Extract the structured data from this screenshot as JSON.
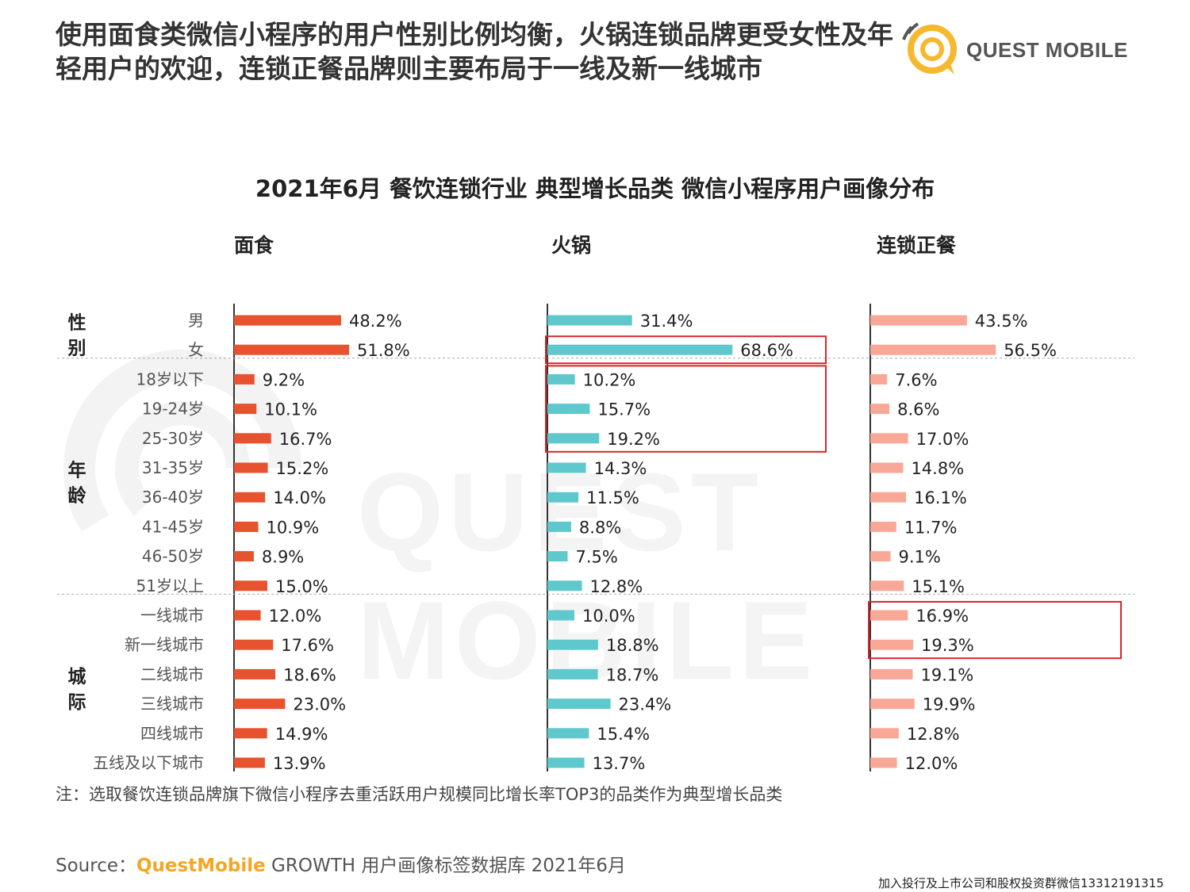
{
  "headline": "使用面食类微信小程序的用户性别比例均衡，火锅连锁品牌更受女性及年轻用户的欢迎，连锁正餐品牌则主要布局于一线及新一线城市",
  "logo": {
    "text": "QUEST MOBILE",
    "icon": "quest-mobile-logo-icon"
  },
  "watermark": "QUEST MOBILE",
  "note": "注：选取餐饮连锁品牌旗下微信小程序去重活跃用户规模同比增长率TOP3的品类作为典型增长品类",
  "source": {
    "prefix": "Source：",
    "brand": "QuestMobile",
    "rest": " GROWTH 用户画像标签数据库 2021年6月"
  },
  "footer": "加入投行及上市公司和股权投资群微信13312191315",
  "colors": {
    "noodle": "#e8532f",
    "hotpot": "#5fc8cc",
    "chain": "#f9a797",
    "highlight": "#d9262c",
    "brand": "#f5a623"
  },
  "chart_data": {
    "type": "bar",
    "title": "2021年6月 餐饮连锁行业 典型增长品类 微信小程序用户画像分布",
    "groups": [
      {
        "name": "性别",
        "categories": [
          "男",
          "女"
        ]
      },
      {
        "name": "年龄",
        "categories": [
          "18岁以下",
          "19-24岁",
          "25-30岁",
          "31-35岁",
          "36-40岁",
          "41-45岁",
          "46-50岁",
          "51岁以上"
        ]
      },
      {
        "name": "城际",
        "categories": [
          "一线城市",
          "新一线城市",
          "二线城市",
          "三线城市",
          "四线城市",
          "五线及以下城市"
        ]
      }
    ],
    "categories": [
      "男",
      "女",
      "18岁以下",
      "19-24岁",
      "25-30岁",
      "31-35岁",
      "36-40岁",
      "41-45岁",
      "46-50岁",
      "51岁以上",
      "一线城市",
      "新一线城市",
      "二线城市",
      "三线城市",
      "四线城市",
      "五线及以下城市"
    ],
    "series": [
      {
        "name": "面食",
        "values": [
          48.2,
          51.8,
          9.2,
          10.1,
          16.7,
          15.2,
          14.0,
          10.9,
          8.9,
          15.0,
          12.0,
          17.6,
          18.6,
          23.0,
          14.9,
          13.9
        ],
        "labels": [
          "48.2%",
          "51.8%",
          "9.2%",
          "10.1%",
          "16.7%",
          "15.2%",
          "14.0%",
          "10.9%",
          "8.9%",
          "15.0%",
          "12.0%",
          "17.6%",
          "18.6%",
          "23.0%",
          "14.9%",
          "13.9%"
        ]
      },
      {
        "name": "火锅",
        "values": [
          31.4,
          68.6,
          10.2,
          15.7,
          19.2,
          14.3,
          11.5,
          8.8,
          7.5,
          12.8,
          10.0,
          18.8,
          18.7,
          23.4,
          15.4,
          13.7
        ],
        "labels": [
          "31.4%",
          "68.6%",
          "10.2%",
          "15.7%",
          "19.2%",
          "14.3%",
          "11.5%",
          "8.8%",
          "7.5%",
          "12.8%",
          "10.0%",
          "18.8%",
          "18.7%",
          "23.4%",
          "15.4%",
          "13.7%"
        ]
      },
      {
        "name": "连锁正餐",
        "values": [
          43.5,
          56.5,
          7.6,
          8.6,
          17.0,
          14.8,
          16.1,
          11.7,
          9.1,
          15.1,
          16.9,
          19.3,
          19.1,
          19.9,
          12.8,
          12.0
        ],
        "labels": [
          "43.5%",
          "56.5%",
          "7.6%",
          "8.6%",
          "17.0%",
          "14.8%",
          "16.1%",
          "11.7%",
          "9.1%",
          "15.1%",
          "16.9%",
          "19.3%",
          "19.1%",
          "19.9%",
          "12.8%",
          "12.0%"
        ]
      }
    ],
    "highlights": [
      {
        "series": "火锅",
        "categories": [
          "女"
        ]
      },
      {
        "series": "火锅",
        "categories": [
          "18岁以下",
          "19-24岁",
          "25-30岁"
        ]
      },
      {
        "series": "连锁正餐",
        "categories": [
          "一线城市",
          "新一线城市"
        ]
      }
    ],
    "unit": "%",
    "grid": false,
    "legend": "none"
  }
}
